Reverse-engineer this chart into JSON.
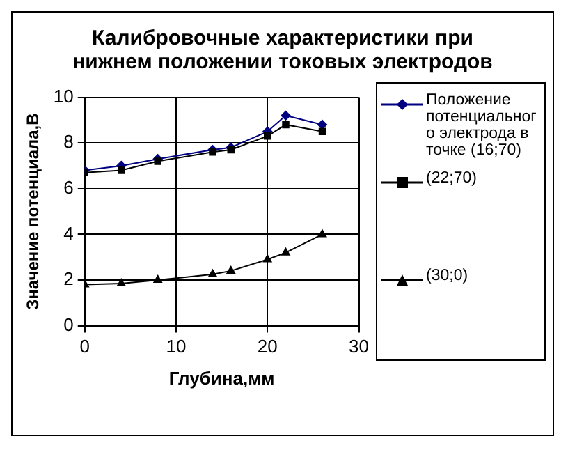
{
  "chart_data": {
    "type": "line",
    "title": "Калибровочные характеристики при нижнем положении токовых электродов",
    "xlabel": "Глубина,мм",
    "ylabel": "Значение потенциала,В",
    "x": [
      0,
      4,
      8,
      14,
      16,
      20,
      22,
      26
    ],
    "series": [
      {
        "name": "Положение потенциального электрода в точке (16;70)",
        "color": "#000080",
        "marker": "diamond",
        "values": [
          6.8,
          7.0,
          7.3,
          7.7,
          7.8,
          8.5,
          9.2,
          8.8
        ]
      },
      {
        "name": "(22;70)",
        "color": "#000000",
        "marker": "square",
        "values": [
          6.7,
          6.8,
          7.2,
          7.6,
          7.7,
          8.3,
          8.8,
          8.5
        ]
      },
      {
        "name": "(30;0)",
        "color": "#000000",
        "marker": "triangle",
        "values": [
          1.8,
          1.85,
          2.0,
          2.25,
          2.4,
          2.9,
          3.2,
          4.0
        ]
      }
    ],
    "xlim": [
      0,
      30
    ],
    "xticks": [
      0,
      10,
      20,
      30
    ],
    "ylim": [
      0,
      10
    ],
    "yticks": [
      0,
      2,
      4,
      6,
      8,
      10
    ],
    "grid": true,
    "legend": "right"
  }
}
